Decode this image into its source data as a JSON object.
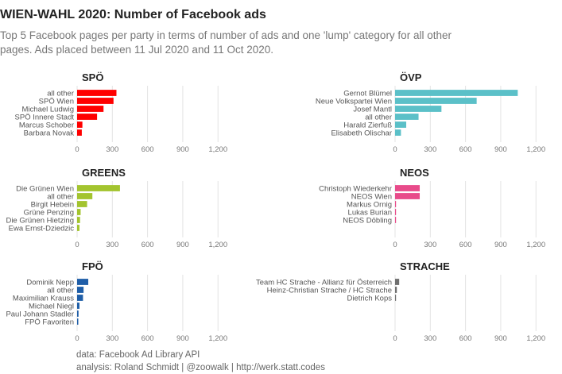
{
  "header": {
    "title": "WIEN-WAHL 2020: Number of Facebook ads",
    "subtitle_line1": "Top 5 Facebook pages per party in terms of number of ads and one 'lump' category for all other",
    "subtitle_line2": "pages. Ads placed between 11 Jul 2020 and 11 Oct 2020."
  },
  "footer": {
    "source": "data: Facebook Ad Library API",
    "analysis": "analysis: Roland Schmidt | @zoowalk | http://werk.statt.codes"
  },
  "chart_data": [
    {
      "type": "bar",
      "title": "SPÖ",
      "color": "#ff0000",
      "xlim": [
        0,
        1300
      ],
      "ticks": [
        0,
        300,
        600,
        900,
        1200
      ],
      "tick_labels": [
        "0",
        "300",
        "600",
        "900",
        "1,200"
      ],
      "categories": [
        "all other",
        "SPÖ Wien",
        "Michael Ludwig",
        "SPÖ Innere Stadt",
        "Marcus Schober",
        "Barbara Novak"
      ],
      "values": [
        335,
        310,
        225,
        170,
        45,
        40
      ]
    },
    {
      "type": "bar",
      "title": "ÖVP",
      "color": "#5bc0c8",
      "xlim": [
        0,
        1300
      ],
      "ticks": [
        0,
        300,
        600,
        900,
        1200
      ],
      "tick_labels": [
        "0",
        "300",
        "600",
        "900",
        "1,200"
      ],
      "categories": [
        "Gernot Blümel",
        "Neue Volkspartei Wien",
        "Josef Mantl",
        "all other",
        "Harald Zierfuß",
        "Elisabeth Olischar"
      ],
      "values": [
        1045,
        695,
        395,
        200,
        95,
        50
      ]
    },
    {
      "type": "bar",
      "title": "GREENS",
      "color": "#a3c42f",
      "xlim": [
        0,
        1300
      ],
      "ticks": [
        0,
        300,
        600,
        900,
        1200
      ],
      "tick_labels": [
        "0",
        "300",
        "600",
        "900",
        "1,200"
      ],
      "categories": [
        "Die Grünen Wien",
        "all other",
        "Birgit Hebein",
        "Grüne Penzing",
        "Die Grünen Hietzing",
        "Ewa Ernst-Dziedzic"
      ],
      "values": [
        365,
        130,
        85,
        30,
        25,
        20
      ]
    },
    {
      "type": "bar",
      "title": "NEOS",
      "color": "#e84b8a",
      "xlim": [
        0,
        1300
      ],
      "ticks": [
        0,
        300,
        600,
        900,
        1200
      ],
      "tick_labels": [
        "0",
        "300",
        "600",
        "900",
        "1,200"
      ],
      "categories": [
        "Christoph Wiederkehr",
        "NEOS Wien",
        "Markus Ornig",
        "Lukas Burian",
        "NEOS Döbling"
      ],
      "values": [
        210,
        210,
        5,
        4,
        3
      ]
    },
    {
      "type": "bar",
      "title": "FPÖ",
      "color": "#1f5ea8",
      "xlim": [
        0,
        1300
      ],
      "ticks": [
        0,
        300,
        600,
        900,
        1200
      ],
      "tick_labels": [
        "0",
        "300",
        "600",
        "900",
        "1,200"
      ],
      "categories": [
        "Dominik Nepp",
        "all other",
        "Maximilian Krauss",
        "Michael Niegl",
        "Paul Johann Stadler",
        "FPÖ Favoriten"
      ],
      "values": [
        95,
        55,
        50,
        20,
        12,
        10
      ]
    },
    {
      "type": "bar",
      "title": "STRACHE",
      "color": "#6f6f6f",
      "xlim": [
        0,
        1300
      ],
      "ticks": [
        0,
        300,
        600,
        900,
        1200
      ],
      "tick_labels": [
        "0",
        "300",
        "600",
        "900",
        "1,200"
      ],
      "categories": [
        "Team HC Strache - Allianz für Österreich",
        "Heinz-Christian Strache / HC Strache",
        "Dietrich Kops"
      ],
      "values": [
        35,
        15,
        5
      ]
    }
  ]
}
